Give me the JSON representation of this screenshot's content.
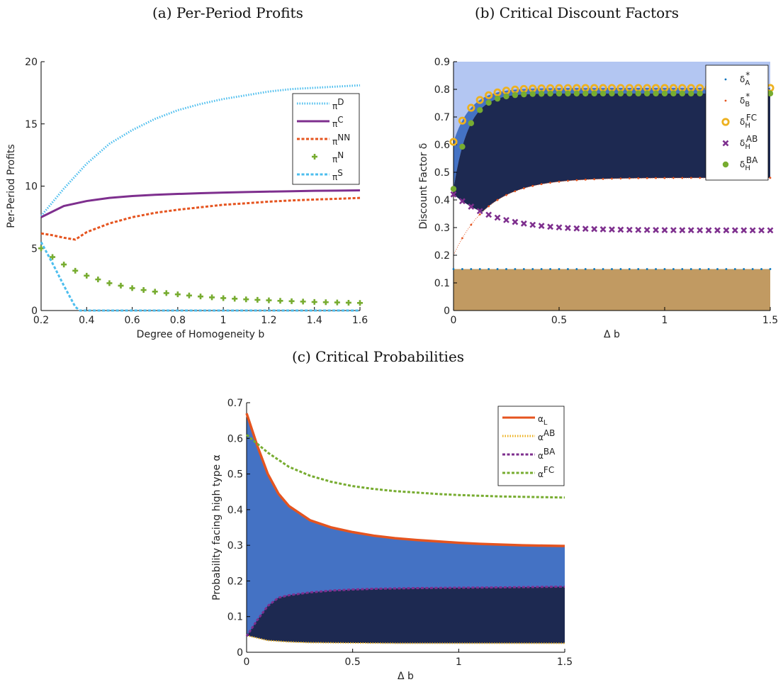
{
  "titles": {
    "a": "(a) Per-Period Profits",
    "b": "(b) Critical Discount Factors",
    "c": "(c) Critical Probabilities"
  },
  "colors": {
    "light_blue": "#b3c6f2",
    "mid_blue": "#4472c4",
    "navy": "#1d2951",
    "tan": "#c19a62",
    "purple": "#7e2f8e",
    "orange": "#e5541f",
    "green": "#77ac30",
    "yellow": "#edb120",
    "cyan": "#4dbeee"
  },
  "chart_data": [
    {
      "type": "line",
      "title": "(a) Per-Period Profits",
      "xlabel": "Degree of Homogeneity b",
      "ylabel": "Per-Period Profits",
      "xlim": [
        0.2,
        1.6
      ],
      "ylim": [
        0,
        20
      ],
      "xticks": [
        "0.2",
        "0.4",
        "0.6",
        "0.8",
        "1",
        "1.2",
        "1.4",
        "1.6"
      ],
      "yticks": [
        "0",
        "5",
        "10",
        "15",
        "20"
      ],
      "legend_position": "top-right",
      "series": [
        {
          "name": "πD",
          "base": "π",
          "sup": "D",
          "color": "#4dbeee",
          "style": "dotted",
          "x": [
            0.2,
            0.3,
            0.4,
            0.5,
            0.6,
            0.7,
            0.8,
            0.9,
            1.0,
            1.1,
            1.2,
            1.3,
            1.4,
            1.5,
            1.6
          ],
          "y": [
            7.6,
            9.8,
            11.8,
            13.4,
            14.5,
            15.4,
            16.1,
            16.6,
            17.0,
            17.3,
            17.6,
            17.8,
            17.9,
            18.0,
            18.1
          ]
        },
        {
          "name": "πC",
          "base": "π",
          "sup": "C",
          "color": "#7e2f8e",
          "style": "solid",
          "x": [
            0.2,
            0.3,
            0.4,
            0.5,
            0.6,
            0.7,
            0.8,
            0.9,
            1.0,
            1.1,
            1.2,
            1.3,
            1.4,
            1.5,
            1.6
          ],
          "y": [
            7.5,
            8.4,
            8.8,
            9.05,
            9.2,
            9.3,
            9.37,
            9.43,
            9.48,
            9.52,
            9.56,
            9.59,
            9.62,
            9.64,
            9.66
          ]
        },
        {
          "name": "πNN",
          "base": "π",
          "sup": "NN",
          "color": "#e5541f",
          "style": "dashed",
          "x": [
            0.2,
            0.25,
            0.3,
            0.35,
            0.4,
            0.5,
            0.6,
            0.7,
            0.8,
            0.9,
            1.0,
            1.1,
            1.2,
            1.3,
            1.4,
            1.5,
            1.6
          ],
          "y": [
            6.2,
            6.05,
            5.85,
            5.7,
            6.3,
            7.0,
            7.5,
            7.85,
            8.1,
            8.3,
            8.5,
            8.62,
            8.75,
            8.85,
            8.92,
            8.98,
            9.05
          ]
        },
        {
          "name": "πN",
          "base": "π",
          "sup": "N",
          "color": "#77ac30",
          "style": "plus",
          "x": [
            0.2,
            0.25,
            0.3,
            0.35,
            0.4,
            0.45,
            0.5,
            0.55,
            0.6,
            0.65,
            0.7,
            0.75,
            0.8,
            0.85,
            0.9,
            0.95,
            1.0,
            1.05,
            1.1,
            1.15,
            1.2,
            1.25,
            1.3,
            1.35,
            1.4,
            1.45,
            1.5,
            1.55,
            1.6
          ],
          "y": [
            5.0,
            4.3,
            3.7,
            3.2,
            2.8,
            2.5,
            2.2,
            2.0,
            1.8,
            1.65,
            1.52,
            1.4,
            1.3,
            1.21,
            1.13,
            1.06,
            1.0,
            0.95,
            0.9,
            0.86,
            0.82,
            0.78,
            0.75,
            0.72,
            0.69,
            0.67,
            0.65,
            0.63,
            0.61
          ]
        },
        {
          "name": "πS",
          "base": "π",
          "sup": "S",
          "color": "#4dbeee",
          "style": "dashed",
          "x": [
            0.2,
            0.25,
            0.3,
            0.35,
            0.37,
            1.6
          ],
          "y": [
            5.5,
            3.8,
            2.0,
            0.3,
            0.0,
            0.0
          ]
        }
      ]
    },
    {
      "type": "scatter",
      "title": "(b) Critical Discount Factors",
      "xlabel": "Δ b",
      "ylabel": "Discount Factor δ",
      "xlim": [
        0,
        1.5
      ],
      "ylim": [
        0,
        0.9
      ],
      "xticks": [
        "0",
        "0.5",
        "1",
        "1.5"
      ],
      "yticks": [
        "0",
        "0.1",
        "0.2",
        "0.3",
        "0.4",
        "0.5",
        "0.6",
        "0.7",
        "0.8",
        "0.9"
      ],
      "legend_position": "top-right",
      "series": [
        {
          "name": "δA*",
          "base": "δ",
          "sub": "A",
          "sup": "*",
          "color": "#0072bd",
          "marker": "dot",
          "formula": "const",
          "p": [
            0.15
          ]
        },
        {
          "name": "δB*",
          "base": "δ",
          "sub": "B",
          "sup": "*",
          "color": "#e5541f",
          "marker": "dot",
          "formula": "B",
          "p": []
        },
        {
          "name": "δHFC",
          "base": "δ",
          "sub": "H",
          "sup": "FC",
          "color": "#edb120",
          "marker": "ring",
          "formula": "exp",
          "p": [
            0.805,
            0.195,
            12
          ]
        },
        {
          "name": "δHAB",
          "base": "δ",
          "sub": "H",
          "sup": "AB",
          "color": "#7e2f8e",
          "marker": "x",
          "formula": "AB",
          "p": []
        },
        {
          "name": "δHBA",
          "base": "δ",
          "sub": "H",
          "sup": "BA",
          "color": "#77ac30",
          "marker": "disc",
          "formula": "exp",
          "p": [
            0.785,
            0.345,
            14
          ]
        }
      ]
    },
    {
      "type": "area",
      "title": "(c) Critical Probabilities",
      "xlabel": "Δ b",
      "ylabel": "Probability facing high type α",
      "xlim": [
        0,
        1.5
      ],
      "ylim": [
        0,
        0.7
      ],
      "xticks": [
        "0",
        "0.5",
        "1",
        "1.5"
      ],
      "yticks": [
        "0",
        "0.1",
        "0.2",
        "0.3",
        "0.4",
        "0.5",
        "0.6",
        "0.7"
      ],
      "legend_position": "top-right",
      "series": [
        {
          "name": "αL",
          "base": "α",
          "sub": "L",
          "color": "#e5541f",
          "style": "solid",
          "x": [
            0,
            0.05,
            0.1,
            0.15,
            0.2,
            0.3,
            0.4,
            0.5,
            0.6,
            0.7,
            0.8,
            0.9,
            1.0,
            1.1,
            1.2,
            1.3,
            1.4,
            1.5
          ],
          "y": [
            0.67,
            0.58,
            0.5,
            0.445,
            0.41,
            0.37,
            0.35,
            0.337,
            0.327,
            0.32,
            0.315,
            0.311,
            0.307,
            0.304,
            0.302,
            0.3,
            0.299,
            0.298
          ]
        },
        {
          "name": "αAB",
          "base": "α",
          "sup": "AB",
          "color": "#edb120",
          "style": "dotted",
          "x": [
            0,
            0.1,
            0.2,
            0.3,
            0.5,
            0.75,
            1.0,
            1.5
          ],
          "y": [
            0.047,
            0.033,
            0.029,
            0.027,
            0.026,
            0.025,
            0.025,
            0.025
          ]
        },
        {
          "name": "αBA",
          "base": "α",
          "sup": "BA",
          "color": "#7e2f8e",
          "style": "dashed",
          "x": [
            0,
            0.05,
            0.1,
            0.15,
            0.2,
            0.3,
            0.4,
            0.5,
            0.6,
            0.8,
            1.0,
            1.2,
            1.5
          ],
          "y": [
            0.045,
            0.09,
            0.13,
            0.153,
            0.16,
            0.168,
            0.173,
            0.176,
            0.178,
            0.18,
            0.181,
            0.182,
            0.184
          ]
        },
        {
          "name": "αFC",
          "base": "α",
          "sup": "FC",
          "color": "#77ac30",
          "style": "dashed",
          "x": [
            0,
            0.05,
            0.1,
            0.2,
            0.3,
            0.4,
            0.5,
            0.6,
            0.7,
            0.8,
            0.9,
            1.0,
            1.1,
            1.2,
            1.3,
            1.4,
            1.5
          ],
          "y": [
            0.61,
            0.585,
            0.56,
            0.52,
            0.495,
            0.478,
            0.466,
            0.458,
            0.452,
            0.448,
            0.444,
            0.441,
            0.439,
            0.437,
            0.436,
            0.435,
            0.434
          ]
        }
      ]
    }
  ]
}
